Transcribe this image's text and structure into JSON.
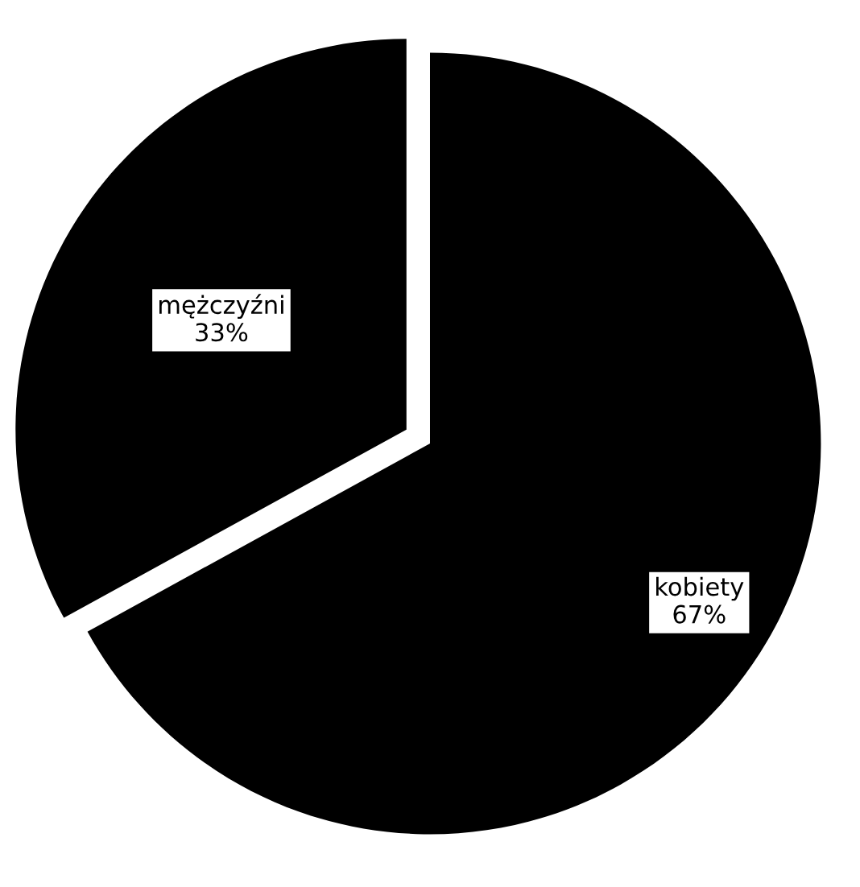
{
  "chart_data": {
    "type": "pie",
    "categories": [
      "kobiety",
      "mężczyźni"
    ],
    "values": [
      67,
      33
    ],
    "value_labels": [
      "67%",
      "33%"
    ],
    "colors": [
      "#000000",
      "#000000"
    ]
  }
}
